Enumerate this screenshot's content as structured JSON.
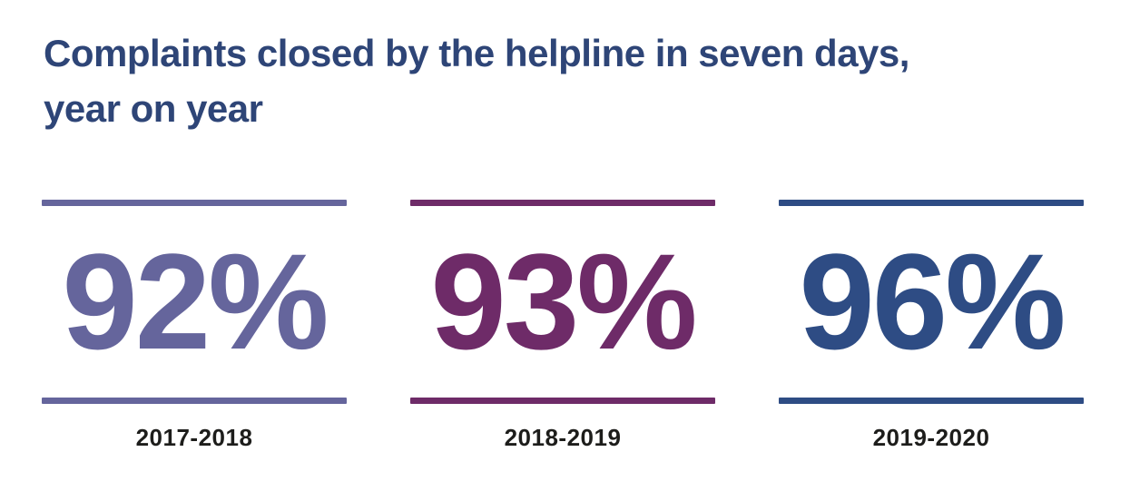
{
  "title": {
    "line1": "Complaints closed by the helpline in seven days,",
    "line2": "year on year",
    "full": "Complaints closed by the helpline in seven days, year on year",
    "color": "#2e4577"
  },
  "stats": [
    {
      "value": "92%",
      "label": "2017-2018",
      "color": "#65659c"
    },
    {
      "value": "93%",
      "label": "2018-2019",
      "color": "#6e2b68"
    },
    {
      "value": "96%",
      "label": "2019-2020",
      "color": "#2e4c84"
    }
  ],
  "label_color": "#1d1d1b",
  "background_color": "#ffffff",
  "chart_data": {
    "type": "table",
    "title": "Complaints closed by the helpline in seven days, year on year",
    "categories": [
      "2017-2018",
      "2018-2019",
      "2019-2020"
    ],
    "values": [
      92,
      93,
      96
    ],
    "unit": "%",
    "series_colors": [
      "#65659c",
      "#6e2b68",
      "#2e4c84"
    ],
    "layout": "three KPI stat cards in a row, each value framed by a horizontal rule above and below, year label beneath"
  }
}
